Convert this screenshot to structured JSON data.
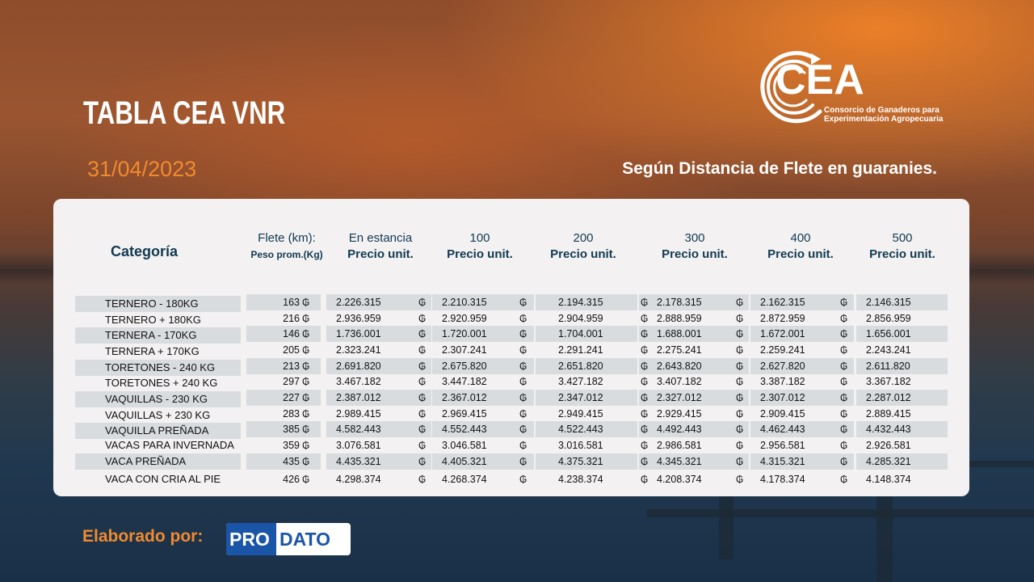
{
  "header": {
    "title": "TABLA CEA VNR",
    "date": "31/04/2023",
    "subtitle": "Según Distancia de Flete en guaranies."
  },
  "logo": {
    "name": "CEA",
    "line1": "Consorcio de Ganaderos para",
    "line2": "Experimentación Agropecuaria"
  },
  "table": {
    "category_header": "Categoría",
    "flete_header_top": "Flete (km):",
    "flete_header_bottom": "Peso prom.(Kg)",
    "columns": [
      {
        "top": "En estancia",
        "bottom": "Precio unit."
      },
      {
        "top": "100",
        "bottom": "Precio unit."
      },
      {
        "top": "200",
        "bottom": "Precio unit."
      },
      {
        "top": "300",
        "bottom": "Precio unit."
      },
      {
        "top": "400",
        "bottom": "Precio unit."
      },
      {
        "top": "500",
        "bottom": "Precio unit."
      }
    ],
    "currency_symbol": "₲",
    "rows": [
      {
        "category": "TERNERO - 180KG",
        "weight": "163",
        "prices": [
          "2.226.315",
          "2.210.315",
          "2.194.315",
          "2.178.315",
          "2.162.315",
          "2.146.315"
        ]
      },
      {
        "category": "TERNERO + 180KG",
        "weight": "216",
        "prices": [
          "2.936.959",
          "2.920.959",
          "2.904.959",
          "2.888.959",
          "2.872.959",
          "2.856.959"
        ]
      },
      {
        "category": "TERNERA - 170KG",
        "weight": "146",
        "prices": [
          "1.736.001",
          "1.720.001",
          "1.704.001",
          "1.688.001",
          "1.672.001",
          "1.656.001"
        ]
      },
      {
        "category": "TERNERA + 170KG",
        "weight": "205",
        "prices": [
          "2.323.241",
          "2.307.241",
          "2.291.241",
          "2.275.241",
          "2.259.241",
          "2.243.241"
        ]
      },
      {
        "category": "TORETONES - 240 KG",
        "weight": "213",
        "prices": [
          "2.691.820",
          "2.675.820",
          "2.651.820",
          "2.643.820",
          "2.627.820",
          "2.611.820"
        ]
      },
      {
        "category": "TORETONES + 240 KG",
        "weight": "297",
        "prices": [
          "3.467.182",
          "3.447.182",
          "3.427.182",
          "3.407.182",
          "3.387.182",
          "3.367.182"
        ]
      },
      {
        "category": "VAQUILLAS - 230 KG",
        "weight": "227",
        "prices": [
          "2.387.012",
          "2.367.012",
          "2.347.012",
          "2.327.012",
          "2.307.012",
          "2.287.012"
        ]
      },
      {
        "category": "VAQUILLAS + 230 KG",
        "weight": "283",
        "prices": [
          "2.989.415",
          "2.969.415",
          "2.949.415",
          "2.929.415",
          "2.909.415",
          "2.889.415"
        ]
      },
      {
        "category": "VAQUILLA PREÑADA",
        "weight": "385",
        "prices": [
          "4.582.443",
          "4.552.443",
          "4.522.443",
          "4.492.443",
          "4.462.443",
          "4.432.443"
        ]
      },
      {
        "category": "VACAS PARA INVERNADA",
        "weight": "359",
        "prices": [
          "3.076.581",
          "3.046.581",
          "3.016.581",
          "2.986.581",
          "2.956.581",
          "2.926.581"
        ]
      },
      {
        "category": "VACA PREÑADA",
        "weight": "435",
        "prices": [
          "4.435.321",
          "4.405.321",
          "4.375.321",
          "4.345.321",
          "4.315.321",
          "4.285.321"
        ]
      },
      {
        "category": "VACA CON CRIA AL PIE",
        "weight": "426",
        "prices": [
          "4.298.374",
          "4.268.374",
          "4.238.374",
          "4.208.374",
          "4.178.374",
          "4.148.374"
        ]
      }
    ]
  },
  "footer": {
    "label": "Elaborado por:",
    "brand_part1": "PRO",
    "brand_part2": "DATO"
  },
  "colors": {
    "accent_orange": "#f08a2e",
    "header_blue": "#123a52",
    "brand_blue": "#1b55a8",
    "row_shade": "#d9dcdf"
  }
}
